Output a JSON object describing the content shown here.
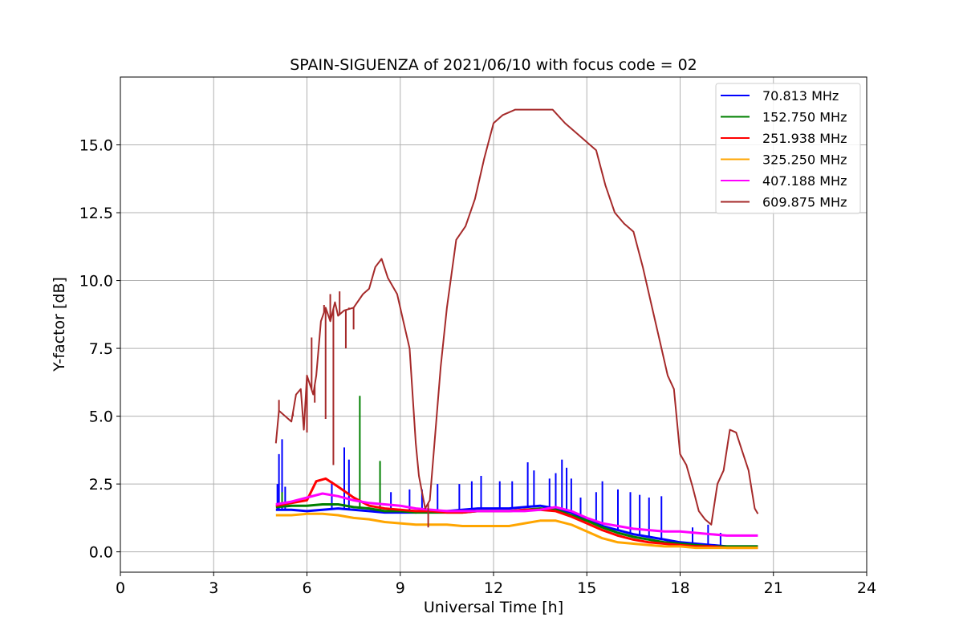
{
  "chart_data": {
    "type": "line",
    "title": "SPAIN-SIGUENZA of 2021/06/10 with focus code = 02",
    "xlabel": "Universal Time [h]",
    "ylabel": "Y-factor [dB]",
    "xlim": [
      0,
      24
    ],
    "ylim": [
      -0.75,
      17.5
    ],
    "xticks": [
      0,
      3,
      6,
      9,
      12,
      15,
      18,
      21,
      24
    ],
    "xtick_labels": [
      "0",
      "3",
      "6",
      "9",
      "12",
      "15",
      "18",
      "21",
      "24"
    ],
    "yticks": [
      0.0,
      2.5,
      5.0,
      7.5,
      10.0,
      12.5,
      15.0
    ],
    "ytick_labels": [
      "0.0",
      "2.5",
      "5.0",
      "7.5",
      "10.0",
      "12.5",
      "15.0"
    ],
    "grid": true,
    "legend_position": "upper right",
    "series": [
      {
        "name": " 70.813 MHz",
        "color": "#0000ff",
        "x": [
          5.0,
          5.5,
          6.0,
          6.5,
          7.0,
          7.5,
          8.0,
          8.5,
          9.0,
          9.5,
          10.0,
          10.5,
          11.0,
          11.5,
          12.0,
          12.5,
          13.0,
          13.5,
          14.0,
          14.5,
          15.0,
          15.5,
          16.0,
          16.5,
          17.0,
          17.5,
          18.0,
          18.5,
          19.0,
          19.5,
          20.0,
          20.5
        ],
        "y": [
          1.55,
          1.55,
          1.5,
          1.55,
          1.6,
          1.55,
          1.5,
          1.45,
          1.45,
          1.45,
          1.5,
          1.5,
          1.55,
          1.6,
          1.6,
          1.6,
          1.65,
          1.7,
          1.6,
          1.45,
          1.2,
          0.95,
          0.8,
          0.65,
          0.55,
          0.45,
          0.35,
          0.3,
          0.25,
          0.2,
          0.2,
          0.2
        ],
        "spikes": [
          [
            5.05,
            2.5
          ],
          [
            5.1,
            3.6
          ],
          [
            5.2,
            4.15
          ],
          [
            5.3,
            2.4
          ],
          [
            6.8,
            2.6
          ],
          [
            7.2,
            3.85
          ],
          [
            7.35,
            3.4
          ],
          [
            8.7,
            2.2
          ],
          [
            9.3,
            2.3
          ],
          [
            9.7,
            2.3
          ],
          [
            10.2,
            2.5
          ],
          [
            10.9,
            2.5
          ],
          [
            11.3,
            2.6
          ],
          [
            11.6,
            2.8
          ],
          [
            12.2,
            2.6
          ],
          [
            12.6,
            2.6
          ],
          [
            13.1,
            3.3
          ],
          [
            13.3,
            3.0
          ],
          [
            13.8,
            2.7
          ],
          [
            14.0,
            2.9
          ],
          [
            14.2,
            3.4
          ],
          [
            14.35,
            3.1
          ],
          [
            14.5,
            2.7
          ],
          [
            14.8,
            2.0
          ],
          [
            15.3,
            2.2
          ],
          [
            15.5,
            2.6
          ],
          [
            16.0,
            2.3
          ],
          [
            16.4,
            2.2
          ],
          [
            16.7,
            2.1
          ],
          [
            17.0,
            2.0
          ],
          [
            17.4,
            2.05
          ],
          [
            18.4,
            0.9
          ],
          [
            18.9,
            1.0
          ],
          [
            19.3,
            0.7
          ]
        ]
      },
      {
        "name": "152.750 MHz",
        "color": "#008000",
        "x": [
          5.0,
          5.5,
          6.0,
          6.5,
          7.0,
          7.5,
          8.0,
          8.5,
          9.0,
          9.5,
          10.0,
          10.5,
          11.0,
          11.5,
          12.0,
          12.5,
          13.0,
          13.5,
          14.0,
          14.5,
          15.0,
          15.5,
          16.0,
          16.5,
          17.0,
          17.5,
          18.0,
          18.5,
          19.0,
          19.5,
          20.0,
          20.5
        ],
        "y": [
          1.65,
          1.7,
          1.7,
          1.75,
          1.75,
          1.65,
          1.6,
          1.5,
          1.5,
          1.45,
          1.45,
          1.45,
          1.45,
          1.5,
          1.5,
          1.5,
          1.55,
          1.6,
          1.55,
          1.35,
          1.15,
          0.9,
          0.7,
          0.55,
          0.45,
          0.35,
          0.3,
          0.25,
          0.2,
          0.2,
          0.2,
          0.2
        ],
        "spikes": [
          [
            5.2,
            2.2
          ],
          [
            7.7,
            5.75
          ],
          [
            8.35,
            3.35
          ]
        ]
      },
      {
        "name": "251.938 MHz",
        "color": "#ff0000",
        "x": [
          5.0,
          5.5,
          6.0,
          6.3,
          6.6,
          7.0,
          7.5,
          8.0,
          8.5,
          9.0,
          9.5,
          10.0,
          10.5,
          11.0,
          11.5,
          12.0,
          12.5,
          13.0,
          13.5,
          14.0,
          14.5,
          15.0,
          15.5,
          16.0,
          16.5,
          17.0,
          17.5,
          18.0,
          18.5,
          19.0,
          19.5,
          20.0,
          20.5
        ],
        "y": [
          1.7,
          1.8,
          1.9,
          2.6,
          2.7,
          2.4,
          2.0,
          1.7,
          1.6,
          1.55,
          1.5,
          1.5,
          1.45,
          1.45,
          1.5,
          1.5,
          1.5,
          1.55,
          1.55,
          1.5,
          1.3,
          1.05,
          0.8,
          0.6,
          0.45,
          0.35,
          0.3,
          0.25,
          0.2,
          0.2,
          0.15,
          0.15,
          0.15
        ],
        "spikes": []
      },
      {
        "name": "325.250 MHz",
        "color": "#ffa500",
        "x": [
          5.0,
          5.5,
          6.0,
          6.5,
          7.0,
          7.5,
          8.0,
          8.5,
          9.0,
          9.5,
          10.0,
          10.5,
          11.0,
          11.5,
          12.0,
          12.5,
          13.0,
          13.5,
          14.0,
          14.5,
          15.0,
          15.5,
          16.0,
          16.5,
          17.0,
          17.5,
          18.0,
          18.5,
          19.0,
          19.5,
          20.0,
          20.5
        ],
        "y": [
          1.35,
          1.35,
          1.4,
          1.4,
          1.35,
          1.25,
          1.2,
          1.1,
          1.05,
          1.0,
          1.0,
          1.0,
          0.95,
          0.95,
          0.95,
          0.95,
          1.05,
          1.15,
          1.15,
          1.0,
          0.75,
          0.5,
          0.35,
          0.3,
          0.25,
          0.2,
          0.2,
          0.15,
          0.15,
          0.15,
          0.15,
          0.15
        ],
        "spikes": []
      },
      {
        "name": "407.188 MHz",
        "color": "#ff00ff",
        "x": [
          5.0,
          5.5,
          6.0,
          6.5,
          7.0,
          7.5,
          8.0,
          8.5,
          9.0,
          9.5,
          10.0,
          10.5,
          11.0,
          11.5,
          12.0,
          12.5,
          13.0,
          13.5,
          14.0,
          14.5,
          15.0,
          15.5,
          16.0,
          16.5,
          17.0,
          17.5,
          18.0,
          18.5,
          19.0,
          19.5,
          20.0,
          20.5
        ],
        "y": [
          1.75,
          1.85,
          2.0,
          2.15,
          2.05,
          1.9,
          1.8,
          1.75,
          1.7,
          1.6,
          1.55,
          1.5,
          1.5,
          1.5,
          1.5,
          1.5,
          1.5,
          1.55,
          1.65,
          1.5,
          1.25,
          1.05,
          0.95,
          0.85,
          0.8,
          0.75,
          0.75,
          0.7,
          0.65,
          0.6,
          0.6,
          0.6
        ],
        "spikes": []
      },
      {
        "name": "609.875 MHz",
        "color": "#a52a2a",
        "x": [
          5.0,
          5.1,
          5.3,
          5.5,
          5.65,
          5.8,
          5.9,
          6.0,
          6.2,
          6.3,
          6.45,
          6.6,
          6.75,
          6.9,
          7.0,
          7.2,
          7.5,
          7.8,
          8.0,
          8.2,
          8.4,
          8.6,
          8.9,
          9.1,
          9.3,
          9.5,
          9.6,
          9.8,
          9.95,
          10.1,
          10.3,
          10.5,
          10.8,
          11.1,
          11.4,
          11.7,
          12.0,
          12.3,
          12.7,
          13.1,
          13.5,
          13.9,
          14.3,
          14.6,
          15.0,
          15.3,
          15.6,
          15.9,
          16.2,
          16.5,
          16.8,
          17.1,
          17.4,
          17.6,
          17.8,
          18.0,
          18.2,
          18.4,
          18.6,
          18.8,
          19.0,
          19.2,
          19.4,
          19.6,
          19.8,
          20.0,
          20.2,
          20.4,
          20.5
        ],
        "y": [
          4.0,
          5.2,
          5.0,
          4.8,
          5.8,
          6.0,
          4.5,
          6.5,
          5.8,
          6.5,
          8.5,
          9.0,
          8.5,
          9.2,
          8.7,
          8.9,
          9.0,
          9.5,
          9.7,
          10.5,
          10.8,
          10.1,
          9.5,
          8.5,
          7.5,
          4.0,
          2.8,
          1.6,
          1.9,
          4.0,
          6.8,
          9.0,
          11.5,
          12.0,
          13.0,
          14.5,
          15.8,
          16.1,
          16.3,
          16.3,
          16.3,
          16.3,
          15.8,
          15.5,
          15.1,
          14.8,
          13.5,
          12.5,
          12.1,
          11.8,
          10.5,
          9.0,
          7.5,
          6.5,
          6.0,
          3.6,
          3.2,
          2.4,
          1.5,
          1.2,
          1.0,
          2.5,
          3.0,
          4.5,
          4.4,
          3.7,
          3.0,
          1.6,
          1.4
        ],
        "spikes": [
          [
            5.1,
            5.6
          ],
          [
            5.55,
            5.0
          ],
          [
            6.0,
            4.4
          ],
          [
            6.15,
            7.9
          ],
          [
            6.25,
            5.5
          ],
          [
            6.55,
            9.1
          ],
          [
            6.6,
            4.9
          ],
          [
            6.75,
            9.5
          ],
          [
            6.85,
            3.2
          ],
          [
            7.05,
            9.6
          ],
          [
            7.25,
            7.5
          ],
          [
            7.35,
            9.0
          ],
          [
            7.5,
            8.2
          ],
          [
            9.9,
            0.9
          ]
        ]
      }
    ]
  }
}
